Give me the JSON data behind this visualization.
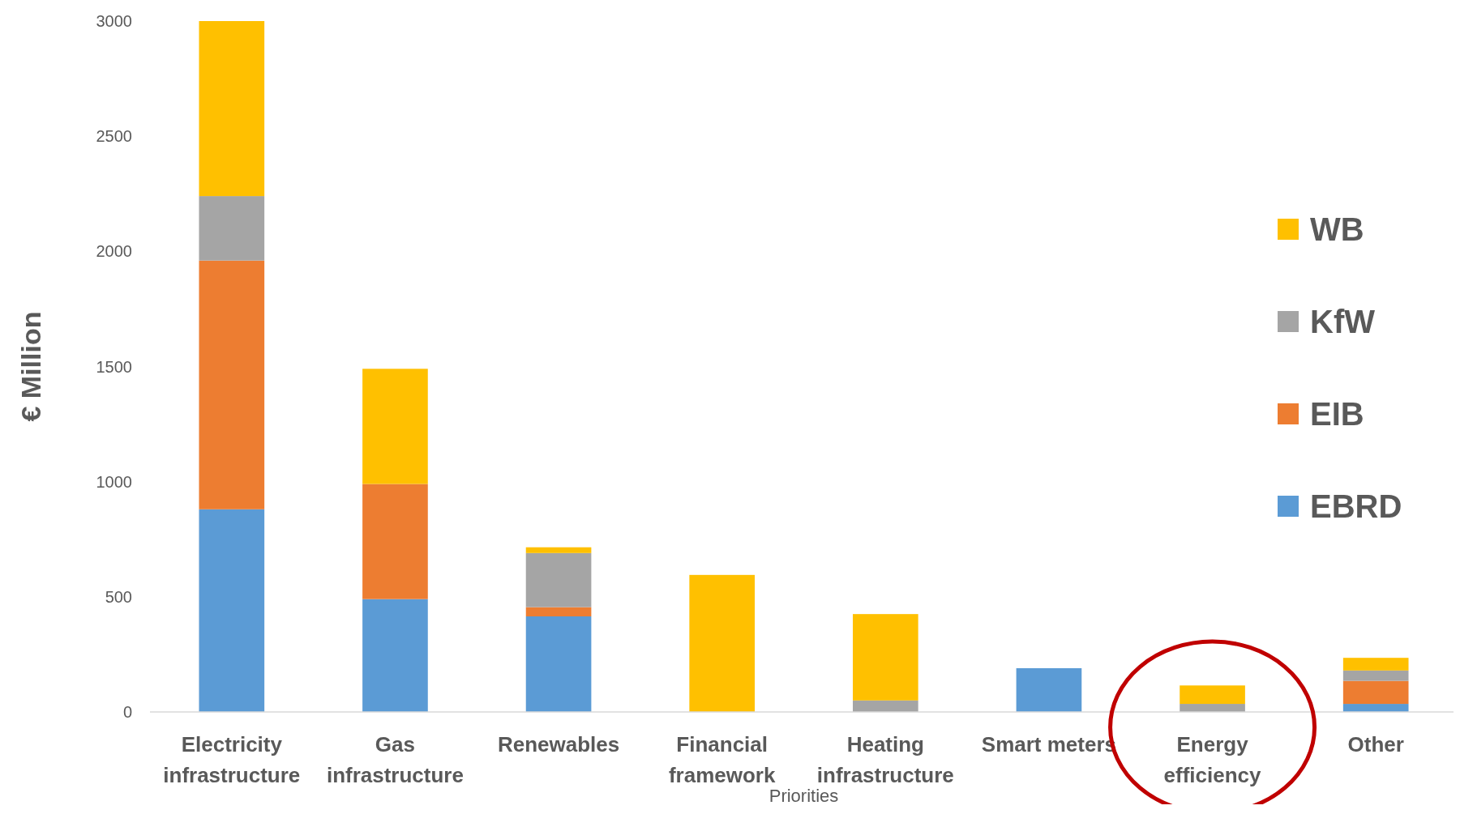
{
  "chart_data": {
    "type": "bar",
    "stacked": true,
    "xlabel": "Priorities",
    "ylabel": "€ Million",
    "categories": [
      "Electricity infrastructure",
      "Gas infrastructure",
      "Renewables",
      "Financial framework",
      "Heating infrastructure",
      "Smart meters",
      "Energy efficiency",
      "Other"
    ],
    "series": [
      {
        "name": "EBRD",
        "color": "#5b9bd5",
        "values": [
          880,
          490,
          415,
          0,
          0,
          190,
          0,
          35
        ]
      },
      {
        "name": "EIB",
        "color": "#ed7d31",
        "values": [
          1080,
          500,
          40,
          0,
          0,
          0,
          0,
          100
        ]
      },
      {
        "name": "KfW",
        "color": "#a5a5a5",
        "values": [
          280,
          0,
          235,
          0,
          50,
          0,
          35,
          45
        ]
      },
      {
        "name": "WB",
        "color": "#ffc000",
        "values": [
          760,
          500,
          25,
          595,
          375,
          0,
          80,
          55
        ]
      }
    ],
    "ylim": [
      0,
      3000
    ],
    "yticks": [
      0,
      500,
      1000,
      1500,
      2000,
      2500,
      3000
    ],
    "grid": false,
    "legend": "right"
  }
}
